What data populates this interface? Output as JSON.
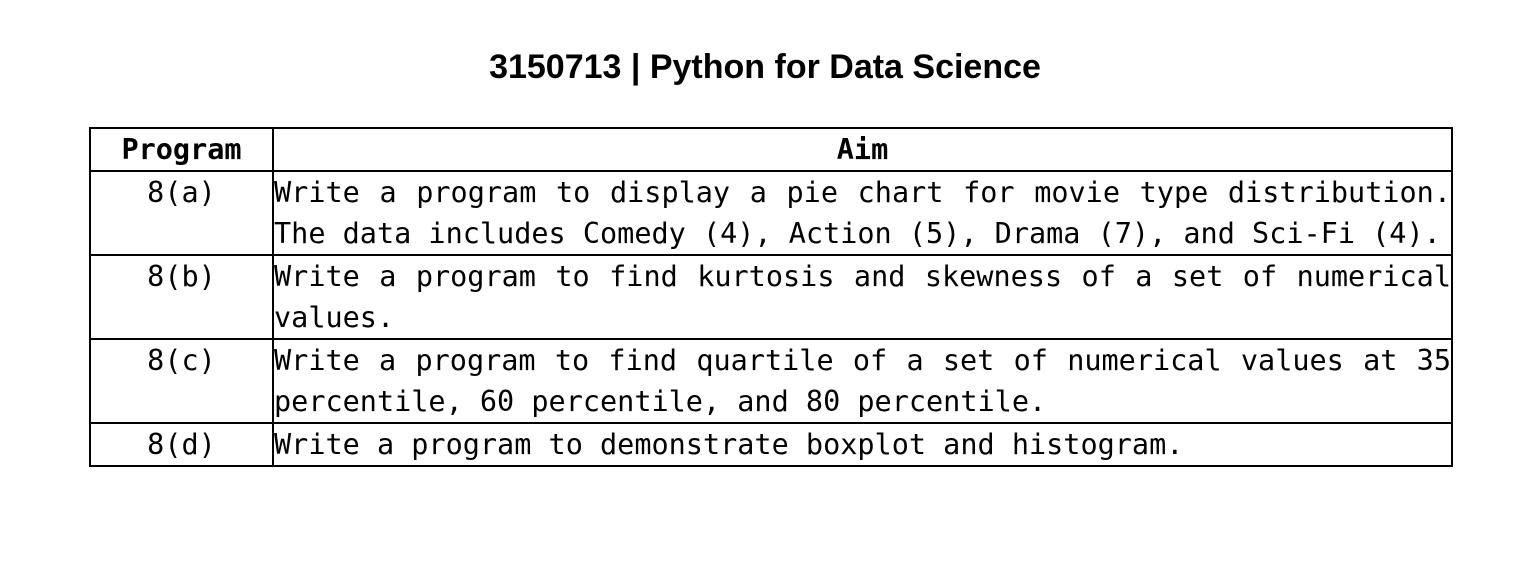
{
  "title": "3150713 | Python for Data Science",
  "table": {
    "headers": {
      "program": "Program",
      "aim": "Aim"
    },
    "rows": [
      {
        "program": "8(a)",
        "aim": "Write a program to display a pie chart for movie type distribution. The data includes Comedy (4), Action (5), Drama (7), and Sci-Fi (4)."
      },
      {
        "program": "8(b)",
        "aim": "Write a program to find kurtosis and skewness of a set of numerical values."
      },
      {
        "program": "8(c)",
        "aim": "Write a program to find quartile of a set of numerical values at 35 percentile, 60 percentile, and 80 percentile."
      },
      {
        "program": "8(d)",
        "aim": "Write a program to demonstrate boxplot and histogram."
      }
    ]
  }
}
